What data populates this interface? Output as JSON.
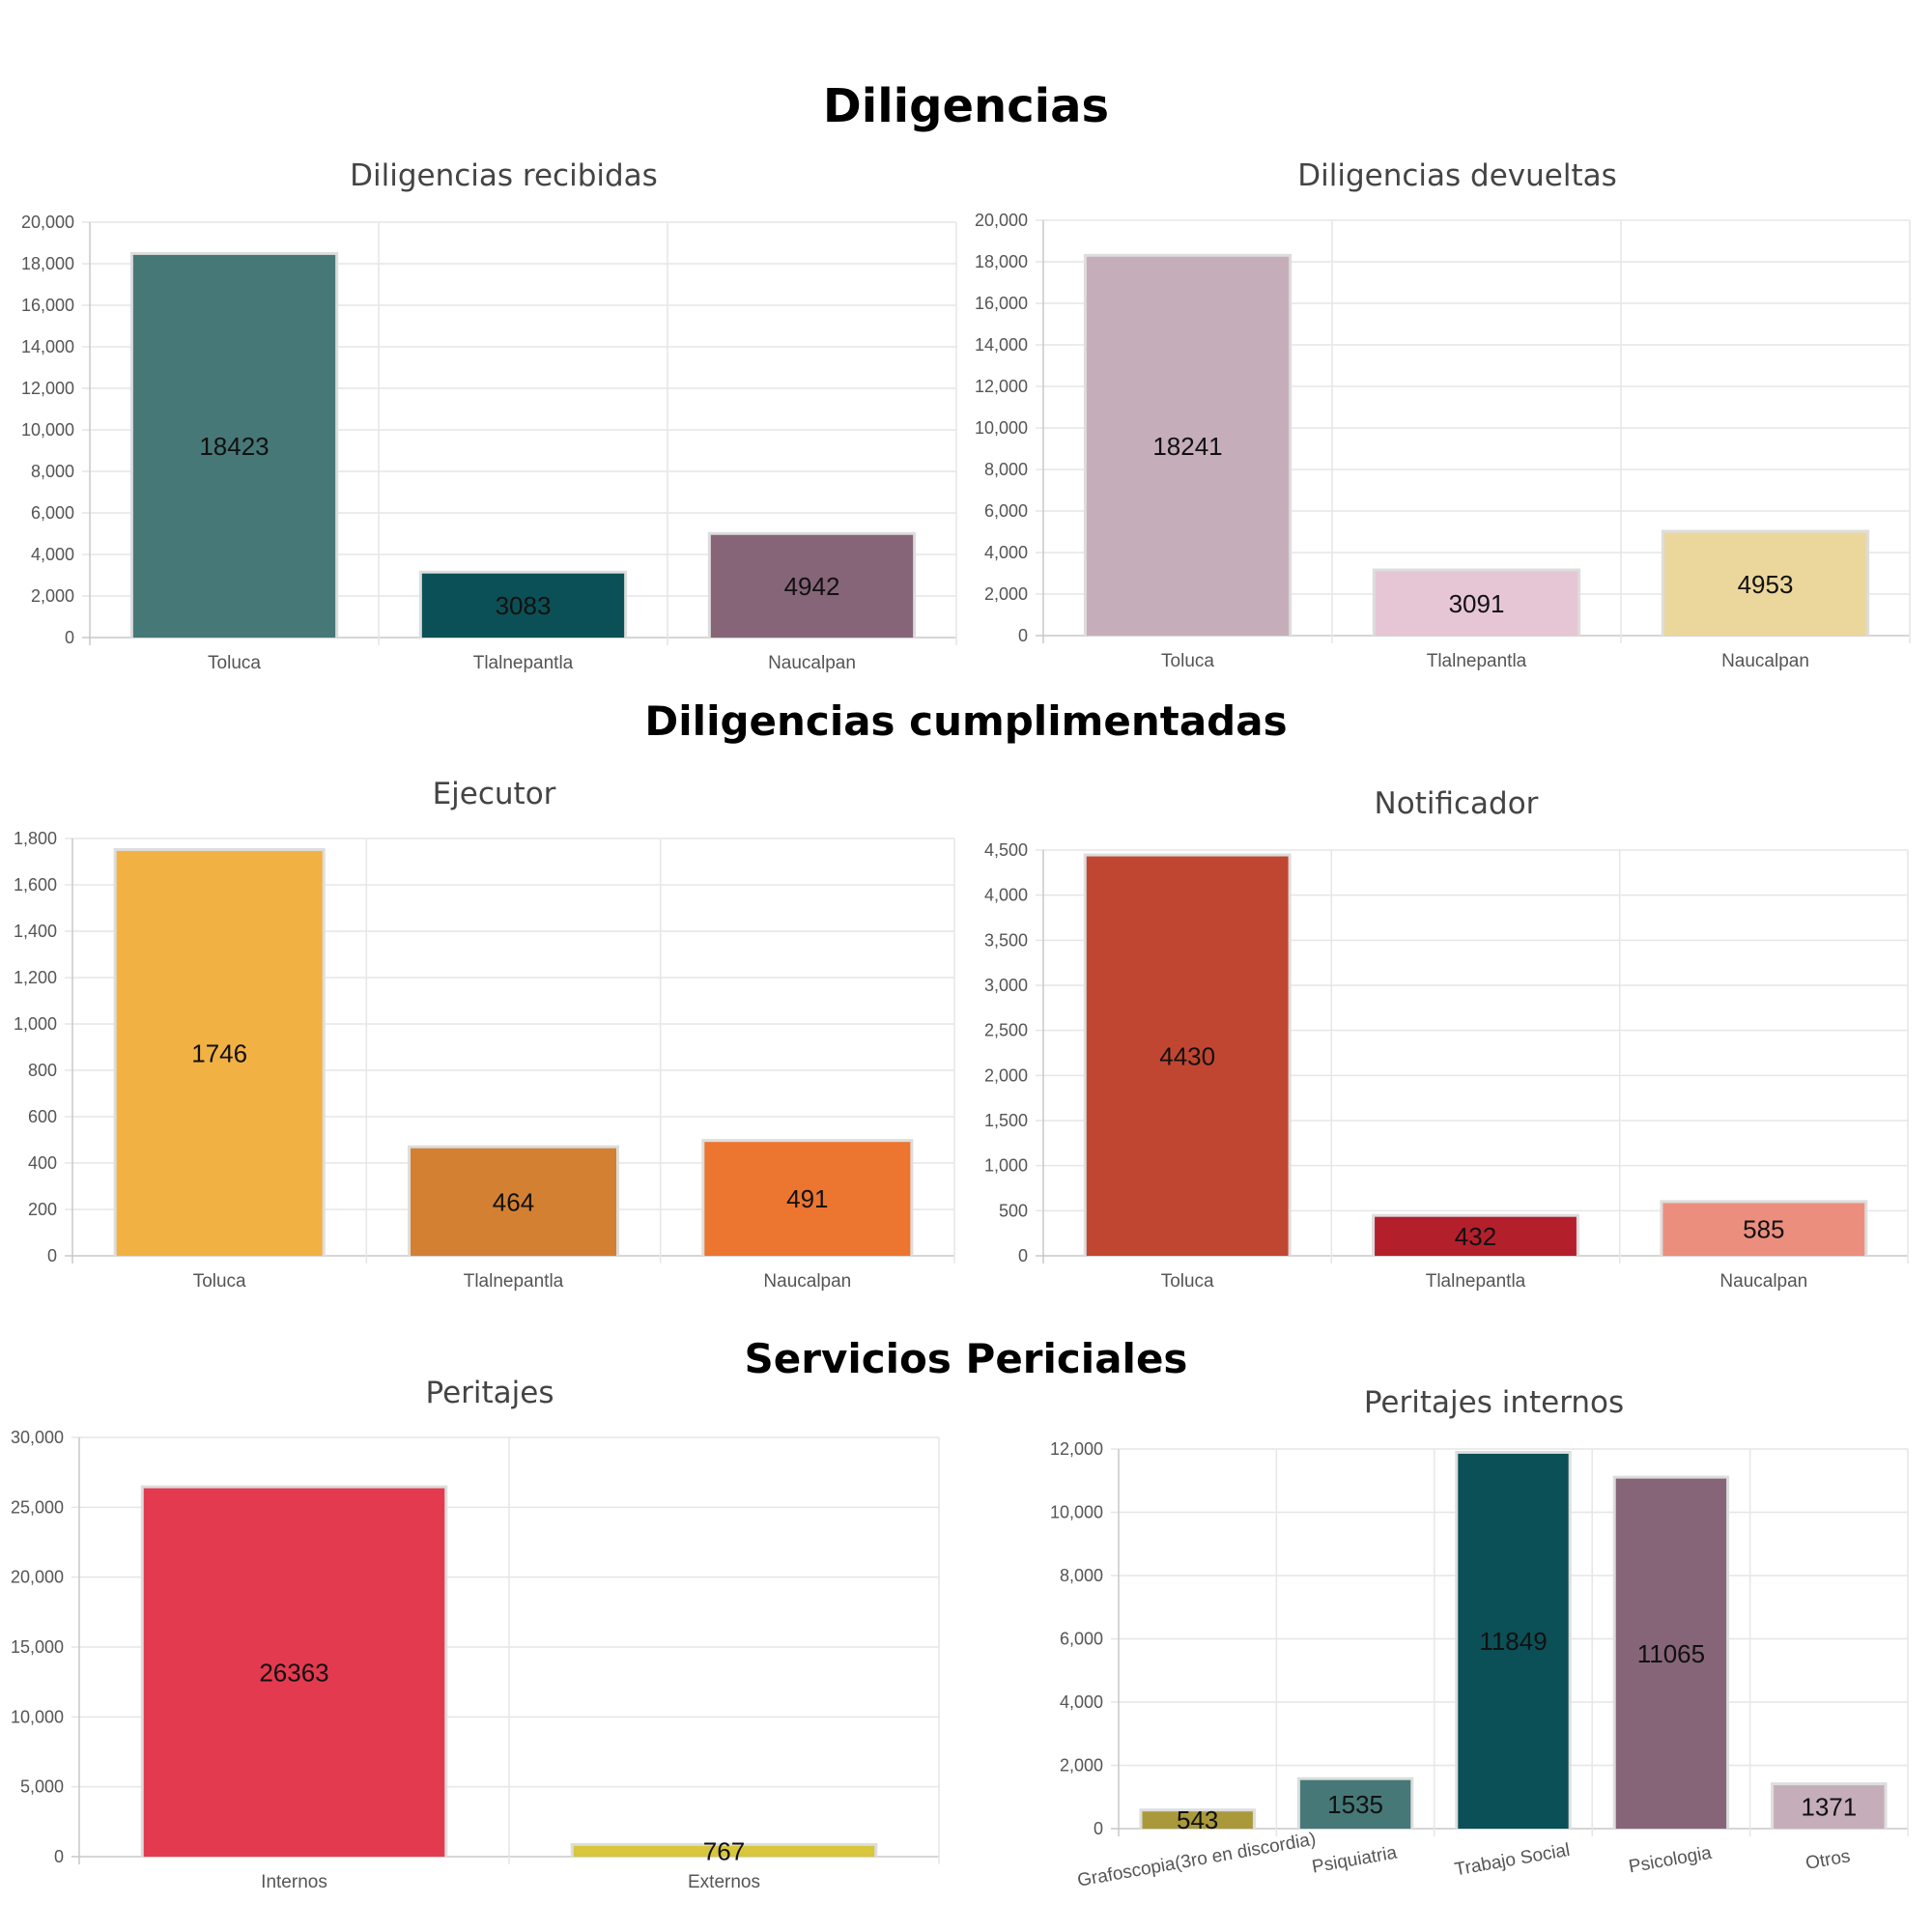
{
  "sections": {
    "s1": "Diligencias",
    "s2": "Diligencias cumplimentadas",
    "s3": "Servicios Periciales"
  },
  "chart_data": [
    {
      "id": "c1",
      "type": "bar",
      "title": "Diligencias recibidas",
      "categories": [
        "Toluca",
        "Tlalnepantla",
        "Naucalpan"
      ],
      "values": [
        18423,
        3083,
        4942
      ],
      "colors": [
        "#477878",
        "#0b5056",
        "#866578"
      ],
      "ylim": [
        0,
        20000
      ],
      "ystep": 2000,
      "grid": true
    },
    {
      "id": "c2",
      "type": "bar",
      "title": "Diligencias devueltas",
      "categories": [
        "Toluca",
        "Tlalnepantla",
        "Naucalpan"
      ],
      "values": [
        18241,
        3091,
        4953
      ],
      "colors": [
        "#c5aeb9",
        "#e6c6d5",
        "#ebd79c"
      ],
      "ylim": [
        0,
        20000
      ],
      "ystep": 2000,
      "grid": true
    },
    {
      "id": "c3",
      "type": "bar",
      "title": "Ejecutor",
      "categories": [
        "Toluca",
        "Tlalnepantla",
        "Naucalpan"
      ],
      "values": [
        1746,
        464,
        491
      ],
      "colors": [
        "#f2b143",
        "#d48032",
        "#ec752f"
      ],
      "ylim": [
        0,
        1800
      ],
      "ystep": 200,
      "grid": true
    },
    {
      "id": "c4",
      "type": "bar",
      "title": "Notificador",
      "categories": [
        "Toluca",
        "Tlalnepantla",
        "Naucalpan"
      ],
      "values": [
        4430,
        432,
        585
      ],
      "colors": [
        "#c14631",
        "#b41f2c",
        "#ec8e7e"
      ],
      "ylim": [
        0,
        4500
      ],
      "ystep": 500,
      "grid": true
    },
    {
      "id": "c5",
      "type": "bar",
      "title": "Peritajes",
      "categories": [
        "Internos",
        "Externos"
      ],
      "values": [
        26363,
        767
      ],
      "colors": [
        "#e33a50",
        "#d8c63c"
      ],
      "ylim": [
        0,
        30000
      ],
      "ystep": 5000,
      "grid": true
    },
    {
      "id": "c6",
      "type": "bar",
      "title": "Peritajes internos",
      "categories": [
        "Grafoscopia(3ro en discordia)",
        "Psiquiatria",
        "Trabajo Social",
        "Psicologia",
        "Otros"
      ],
      "values": [
        543,
        1535,
        11849,
        11065,
        1371
      ],
      "colors": [
        "#a9993a",
        "#477878",
        "#0b5056",
        "#866578",
        "#c5aeb9"
      ],
      "ylim": [
        0,
        12000
      ],
      "ystep": 2000,
      "grid": true,
      "rotated_labels": true
    }
  ]
}
